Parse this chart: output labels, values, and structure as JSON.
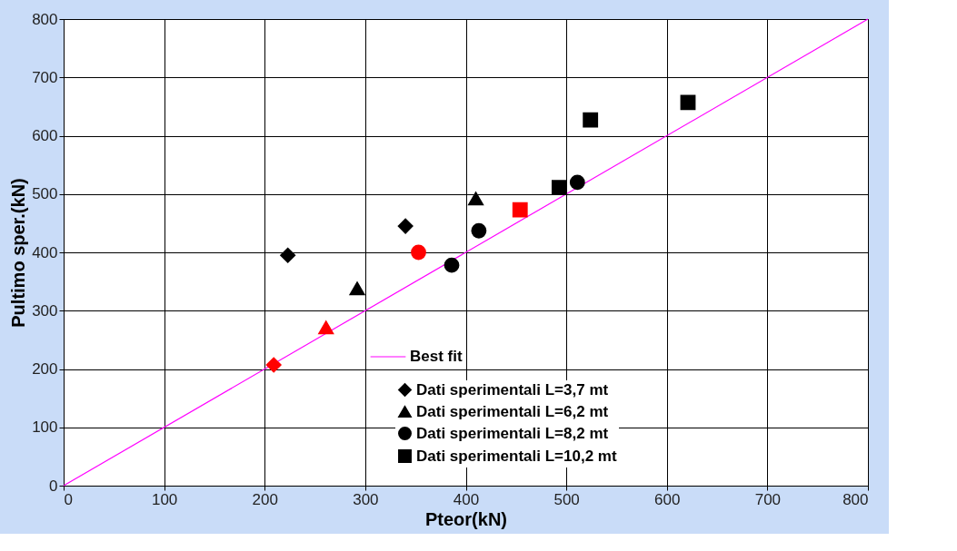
{
  "chart_data": {
    "type": "scatter",
    "xlabel": "Pteor(kN)",
    "ylabel": "Pultimo sper.(kN)",
    "xlim": [
      0,
      800
    ],
    "ylim": [
      0,
      800
    ],
    "xticks": [
      0,
      100,
      200,
      300,
      400,
      500,
      600,
      700,
      800
    ],
    "yticks": [
      0,
      100,
      200,
      300,
      400,
      500,
      600,
      700,
      800
    ],
    "grid": true,
    "legend": "bottom right",
    "series": [
      {
        "name": "Best fit",
        "type": "line",
        "color": "#ff00ff",
        "line_style": "solid",
        "marker": "none",
        "x": [
          0,
          800
        ],
        "values": [
          0,
          800
        ]
      },
      {
        "name": "Dati sperimentali L=3,7 mt",
        "marker": "diamond",
        "color": "#000000",
        "x": [
          223,
          340,
          209
        ],
        "values": [
          395,
          445,
          207
        ],
        "colors": [
          "#000000",
          "#000000",
          "#ff0000"
        ]
      },
      {
        "name": "Dati sperimentali L=6,2 mt",
        "marker": "triangle",
        "color": "#000000",
        "x": [
          292,
          410,
          261
        ],
        "values": [
          338,
          492,
          271
        ],
        "colors": [
          "#000000",
          "#000000",
          "#ff0000"
        ]
      },
      {
        "name": "Dati sperimentali L=8,2 mt",
        "marker": "circle",
        "color": "#000000",
        "x": [
          386,
          413,
          511,
          353
        ],
        "values": [
          378,
          437,
          520,
          400
        ],
        "colors": [
          "#000000",
          "#000000",
          "#000000",
          "#ff0000"
        ]
      },
      {
        "name": "Dati sperimentali L=10,2 mt",
        "marker": "square",
        "color": "#000000",
        "x": [
          493,
          524,
          621,
          454
        ],
        "values": [
          511,
          627,
          657,
          473
        ],
        "colors": [
          "#000000",
          "#000000",
          "#000000",
          "#ff0000"
        ]
      }
    ]
  }
}
